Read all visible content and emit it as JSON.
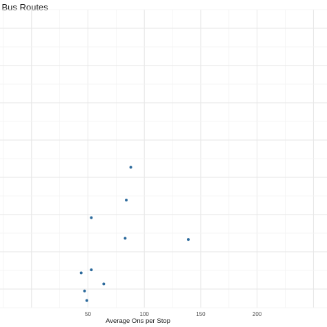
{
  "chart_data": {
    "type": "scatter",
    "title": "of Bus Routes",
    "xlabel": "Average Ons per Stop",
    "ylabel": "",
    "x_ticks": [
      50,
      100,
      150,
      200
    ],
    "xlim": [
      -28,
      262
    ],
    "ylim": [
      0,
      1
    ],
    "grid": true,
    "point_color": "#2c6a9c",
    "points": [
      {
        "x": 44,
        "y": 0.117
      },
      {
        "x": 47,
        "y": 0.056
      },
      {
        "x": 49,
        "y": 0.024
      },
      {
        "x": 53,
        "y": 0.127
      },
      {
        "x": 53,
        "y": 0.302
      },
      {
        "x": 64,
        "y": 0.08
      },
      {
        "x": 83,
        "y": 0.233
      },
      {
        "x": 84,
        "y": 0.361
      },
      {
        "x": 88,
        "y": 0.471
      },
      {
        "x": 139,
        "y": 0.229
      }
    ]
  }
}
